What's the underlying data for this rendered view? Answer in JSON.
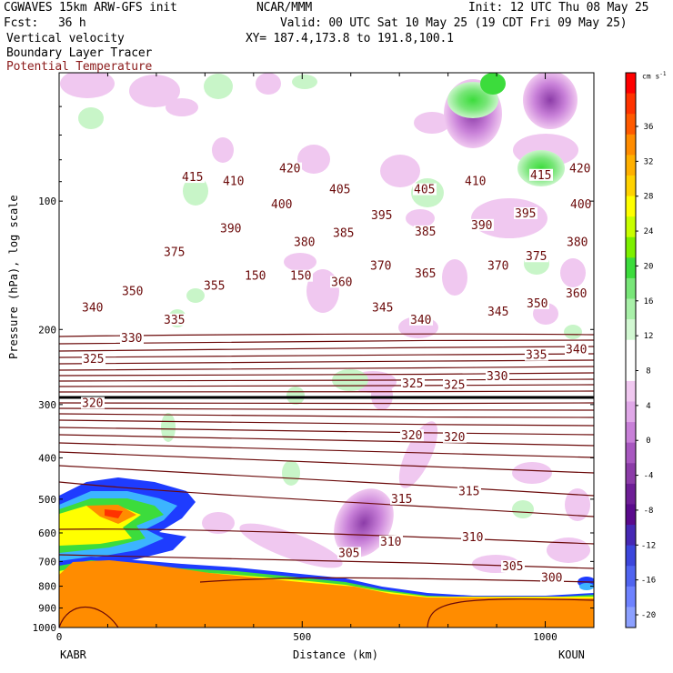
{
  "header": {
    "model": "CGWAVES 15km ARW-GFS init",
    "org": "NCAR/MMM",
    "init": "Init: 12 UTC Thu 08 May 25",
    "fcst_label": "Fcst:",
    "fcst_value": "36 h",
    "valid": "Valid: 00 UTC Sat 10 May 25 (19 CDT Fri 09 May 25)",
    "field1": "Vertical velocity",
    "field2": "Boundary Layer Tracer",
    "field3": "Potential Temperature",
    "xy": "XY= 187.4,173.8 to 191.8,100.1"
  },
  "colors": {
    "theta": "#6b0a0a",
    "field3_text": "#8b1a1a",
    "tracer_orange": "#ff8c00",
    "blue": "#1e3cff"
  },
  "chart_data": {
    "type": "heatmap",
    "xlabel": "Distance (km)",
    "ylabel": "Pressure (hPa), log scale",
    "xlim": [
      0,
      1100
    ],
    "ylim": [
      1000,
      50
    ],
    "y_scale": "log",
    "x_ticks": [
      "0",
      "500",
      "1000"
    ],
    "x_tick_values": [
      0,
      500,
      1000
    ],
    "y_ticks": [
      "100",
      "200",
      "300",
      "400",
      "500",
      "600",
      "700",
      "800",
      "900",
      "1000"
    ],
    "y_tick_values": [
      100,
      200,
      300,
      400,
      500,
      600,
      700,
      800,
      900,
      1000
    ],
    "x_endpoints": {
      "left": "KABR",
      "right": "KOUN"
    },
    "colorbar": {
      "units": "cm s",
      "units_sup": "-1",
      "labels": [
        "36",
        "32",
        "28",
        "24",
        "20",
        "16",
        "12",
        "8",
        "4",
        "0",
        "-4",
        "-8",
        "-12",
        "-16",
        "-20"
      ],
      "colors": [
        "#ff0000",
        "#ff3300",
        "#ff5a00",
        "#ff8c00",
        "#ffb000",
        "#ffd200",
        "#ffff00",
        "#c8ff00",
        "#7cf000",
        "#3cdc3c",
        "#78e678",
        "#a8f0a8",
        "#d2f8d2",
        "#ffffff",
        "#ffffff",
        "#f0c8f0",
        "#e0a8e8",
        "#c880d8",
        "#a858c0",
        "#8c3ca8",
        "#6e1e96",
        "#5a0a8c",
        "#4628b4",
        "#3c46dc",
        "#5064f0",
        "#6e82ff",
        "#8ca0ff"
      ]
    },
    "theta_contour_labels": [
      {
        "v": "415",
        "x": 200,
        "p": 88
      },
      {
        "v": "410",
        "x": 245,
        "p": 90
      },
      {
        "v": "420",
        "x": 307,
        "p": 84
      },
      {
        "v": "405",
        "x": 362,
        "p": 94
      },
      {
        "v": "400",
        "x": 298,
        "p": 102
      },
      {
        "v": "405",
        "x": 455,
        "p": 94
      },
      {
        "v": "410",
        "x": 511,
        "p": 90
      },
      {
        "v": "415",
        "x": 583,
        "p": 87
      },
      {
        "v": "420",
        "x": 626,
        "p": 84
      },
      {
        "v": "395",
        "x": 408,
        "p": 108
      },
      {
        "v": "390",
        "x": 518,
        "p": 114
      },
      {
        "v": "395",
        "x": 566,
        "p": 107
      },
      {
        "v": "400",
        "x": 627,
        "p": 102
      },
      {
        "v": "390",
        "x": 242,
        "p": 116
      },
      {
        "v": "385",
        "x": 366,
        "p": 119
      },
      {
        "v": "380",
        "x": 323,
        "p": 125
      },
      {
        "v": "385",
        "x": 456,
        "p": 118
      },
      {
        "v": "380",
        "x": 623,
        "p": 125
      },
      {
        "v": "375",
        "x": 180,
        "p": 132
      },
      {
        "v": "375",
        "x": 578,
        "p": 135
      },
      {
        "v": "370",
        "x": 407,
        "p": 142
      },
      {
        "v": "370",
        "x": 536,
        "p": 142
      },
      {
        "v": "365",
        "x": 456,
        "p": 148
      },
      {
        "v": "360",
        "x": 364,
        "p": 155
      },
      {
        "v": "360",
        "x": 622,
        "p": 165
      },
      {
        "v": "355",
        "x": 224,
        "p": 158
      },
      {
        "v": "350",
        "x": 134,
        "p": 163
      },
      {
        "v": "350",
        "x": 579,
        "p": 174
      },
      {
        "v": "345",
        "x": 409,
        "p": 178
      },
      {
        "v": "345",
        "x": 536,
        "p": 182
      },
      {
        "v": "340",
        "x": 90,
        "p": 178
      },
      {
        "v": "340",
        "x": 451,
        "p": 190
      },
      {
        "v": "340",
        "x": 622,
        "p": 223
      },
      {
        "v": "335",
        "x": 180,
        "p": 190
      },
      {
        "v": "335",
        "x": 578,
        "p": 230
      },
      {
        "v": "330",
        "x": 133,
        "p": 210
      },
      {
        "v": "330",
        "x": 535,
        "p": 258
      },
      {
        "v": "325",
        "x": 91,
        "p": 235
      },
      {
        "v": "325",
        "x": 442,
        "p": 268
      },
      {
        "v": "325",
        "x": 488,
        "p": 270
      },
      {
        "v": "320",
        "x": 90,
        "p": 298
      },
      {
        "v": "320",
        "x": 441,
        "p": 355
      },
      {
        "v": "320",
        "x": 488,
        "p": 358
      },
      {
        "v": "315",
        "x": 430,
        "p": 500
      },
      {
        "v": "315",
        "x": 504,
        "p": 480
      },
      {
        "v": "310",
        "x": 418,
        "p": 630
      },
      {
        "v": "310",
        "x": 508,
        "p": 615
      },
      {
        "v": "305",
        "x": 372,
        "p": 670
      },
      {
        "v": "305",
        "x": 552,
        "p": 720
      },
      {
        "v": "300",
        "x": 595,
        "p": 765
      },
      {
        "v": "150",
        "x": 269,
        "p": 150
      },
      {
        "v": "150",
        "x": 319,
        "p": 150
      }
    ]
  }
}
